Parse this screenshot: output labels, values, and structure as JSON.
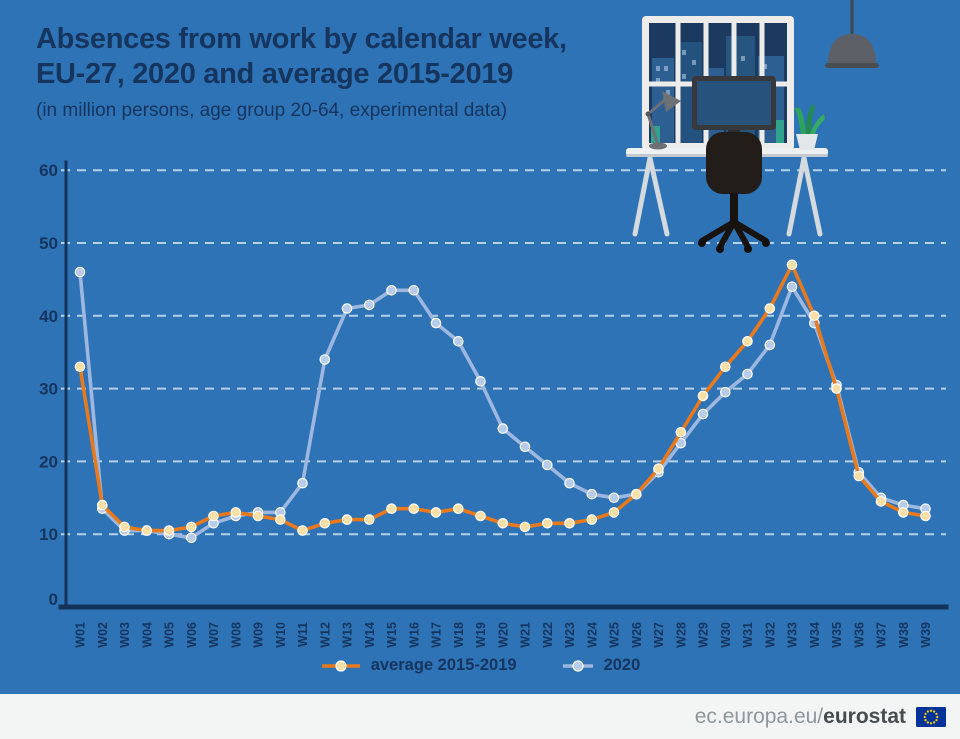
{
  "title": {
    "line1": "Absences from work by calendar week,",
    "line2": "EU-27, 2020 and average 2015-2019",
    "subtitle": "(in million persons, age group 20-64, experimental data)"
  },
  "legend": {
    "series1": "average 2015-2019",
    "series2": "2020"
  },
  "footer": {
    "url_prefix": "ec.europa.eu/",
    "url_bold": "eurostat"
  },
  "illustration": {
    "name": "home-office-workspace",
    "elements": [
      "pendant-lamp",
      "window-city-view",
      "desk",
      "desk-lamp",
      "monitor",
      "plant",
      "office-chair"
    ]
  },
  "colors": {
    "background": "#2e73b5",
    "title_text": "#15355e",
    "axis": "#13335a",
    "gridline": "#d9e8f8",
    "average_line": "#e8791d",
    "average_marker": "#fbdfa7",
    "line_2020": "#9db7e0",
    "marker_2020": "#b7cbec",
    "footer_bg": "#f3f4f4",
    "eu_flag_blue": "#003399",
    "eu_flag_stars": "#ffcc00"
  },
  "chart_data": {
    "type": "line",
    "title": "Absences from work by calendar week, EU-27, 2020 and average 2015-2019",
    "subtitle": "(in million persons, age group 20-64, experimental data)",
    "unit": "million persons",
    "grid": "dashed-horizontal",
    "legend_position": "bottom",
    "ylim": [
      0,
      60
    ],
    "yticks": [
      0,
      10,
      20,
      30,
      40,
      50,
      60
    ],
    "categories": [
      "W01",
      "W02",
      "W03",
      "W04",
      "W05",
      "W06",
      "W07",
      "W08",
      "W09",
      "W10",
      "W11",
      "W12",
      "W13",
      "W14",
      "W15",
      "W16",
      "W17",
      "W18",
      "W19",
      "W20",
      "W21",
      "W22",
      "W23",
      "W24",
      "W25",
      "W26",
      "W27",
      "W28",
      "W29",
      "W30",
      "W31",
      "W32",
      "W33",
      "W34",
      "W35",
      "W36",
      "W37",
      "W38",
      "W39"
    ],
    "series": [
      {
        "name": "average 2015-2019",
        "color": "#e8791d",
        "marker_fill": "#fbdfa7",
        "values": [
          33,
          14,
          11,
          10.5,
          10.5,
          11,
          12.5,
          13,
          12.5,
          12,
          10.5,
          11.5,
          12,
          12,
          13.5,
          13.5,
          13,
          13.5,
          12.5,
          11.5,
          11,
          11.5,
          11.5,
          12,
          13,
          15.5,
          19,
          24,
          29,
          33,
          36.5,
          41,
          47,
          40,
          30,
          18,
          14.5,
          13,
          12.5
        ]
      },
      {
        "name": "2020",
        "color": "#9db7e0",
        "marker_fill": "#b7cbec",
        "values": [
          46,
          13.5,
          10.5,
          10.5,
          10,
          9.5,
          11.5,
          12.5,
          13,
          13,
          17,
          34,
          41,
          41.5,
          43.5,
          43.5,
          39,
          36.5,
          31,
          24.5,
          22,
          19.5,
          17,
          15.5,
          15,
          15.5,
          18.5,
          22.5,
          26.5,
          29.5,
          32,
          36,
          44,
          39,
          30.5,
          18.5,
          15,
          14,
          13.5
        ]
      }
    ]
  }
}
